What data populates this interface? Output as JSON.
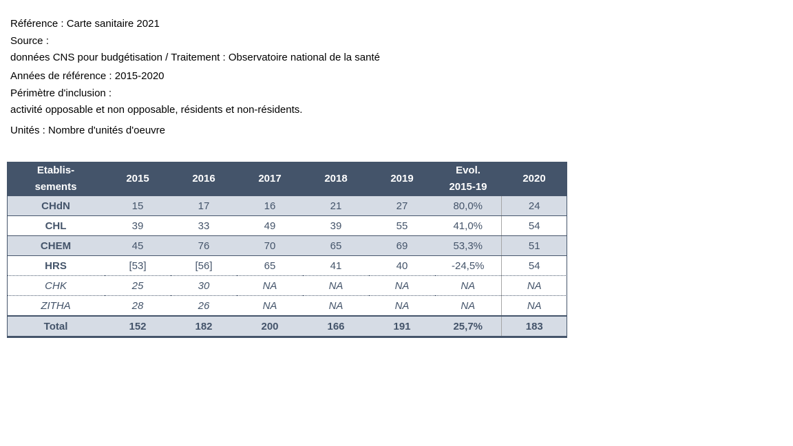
{
  "meta": {
    "reference": "Référence : Carte sanitaire 2021",
    "source_label": "Source :",
    "source_value": "données CNS pour budgétisation / Traitement : Observatoire national de la santé",
    "years": "Années de référence : 2015-2020",
    "perimeter_label": "Périmètre d'inclusion :",
    "perimeter_value": "activité opposable et non opposable, résidents et non-résidents.",
    "units": "Unités : Nombre d'unités d'oeuvre"
  },
  "table": {
    "header": {
      "estab_line1": "Etablis-",
      "estab_line2": "sements",
      "y2015": "2015",
      "y2016": "2016",
      "y2017": "2017",
      "y2018": "2018",
      "y2019": "2019",
      "evol_line1": "Evol.",
      "evol_line2": "2015-19",
      "y2020": "2020"
    },
    "rows": [
      {
        "name": "CHdN",
        "c1": "15",
        "c2": "17",
        "c3": "16",
        "c4": "21",
        "c5": "27",
        "evol": "80,0%",
        "c6": "24"
      },
      {
        "name": "CHL",
        "c1": "39",
        "c2": "33",
        "c3": "49",
        "c4": "39",
        "c5": "55",
        "evol": "41,0%",
        "c6": "54"
      },
      {
        "name": "CHEM",
        "c1": "45",
        "c2": "76",
        "c3": "70",
        "c4": "65",
        "c5": "69",
        "evol": "53,3%",
        "c6": "51"
      },
      {
        "name": "HRS",
        "c1": "[53]",
        "c2": "[56]",
        "c3": "65",
        "c4": "41",
        "c5": "40",
        "evol": "-24,5%",
        "c6": "54"
      },
      {
        "name": "CHK",
        "c1": "25",
        "c2": "30",
        "c3": "NA",
        "c4": "NA",
        "c5": "NA",
        "evol": "NA",
        "c6": "NA"
      },
      {
        "name": "ZITHA",
        "c1": "28",
        "c2": "26",
        "c3": "NA",
        "c4": "NA",
        "c5": "NA",
        "evol": "NA",
        "c6": "NA"
      }
    ],
    "total": {
      "name": "Total",
      "c1": "152",
      "c2": "182",
      "c3": "200",
      "c4": "166",
      "c5": "191",
      "evol": "25,7%",
      "c6": "183"
    }
  },
  "colors": {
    "header_bg": "#44546a",
    "row_shade": "#d6dce5"
  }
}
